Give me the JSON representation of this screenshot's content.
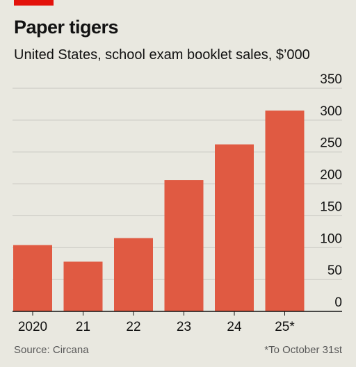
{
  "header": {
    "title": "Paper tigers",
    "subtitle": "United States, school exam booklet sales, $’000"
  },
  "footer": {
    "source": "Source: Circana",
    "note": "*To October 31st"
  },
  "colors": {
    "accent": "#e3120b",
    "bar": "#e05a42",
    "grid": "#c7c6bf",
    "axis": "#121212",
    "background": "#e9e8e0"
  },
  "chart_data": {
    "type": "bar",
    "categories": [
      "2020",
      "21",
      "22",
      "23",
      "24",
      "25*"
    ],
    "values": [
      104,
      78,
      115,
      206,
      262,
      315
    ],
    "ylim": [
      0,
      350
    ],
    "yticks": [
      0,
      50,
      100,
      150,
      200,
      250,
      300,
      350
    ],
    "ytick_position": "right",
    "grid": true,
    "legend": "none"
  }
}
